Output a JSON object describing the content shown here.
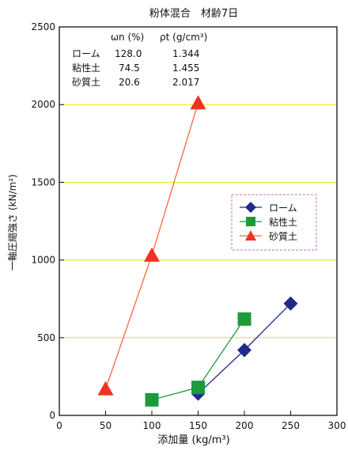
{
  "chart_data": {
    "type": "line",
    "title": "粉体混合　材齢7日",
    "xlabel": "添加量 (kg/m³)",
    "ylabel": "一軸圧縮強さ (kN/m²)",
    "xlim": [
      0,
      300
    ],
    "ylim": [
      0,
      2500
    ],
    "x_ticks": [
      "0",
      "50",
      "100",
      "150",
      "200",
      "250",
      "300"
    ],
    "y_ticks": [
      "0",
      "500",
      "1000",
      "1500",
      "2000",
      "2500"
    ],
    "grid": "horizontal",
    "gridline_color": "#e8e800",
    "legend_position": "right",
    "series": [
      {
        "name": "ローム",
        "marker": "diamond",
        "color": "#1f2a8a",
        "points": [
          [
            150,
            140
          ],
          [
            200,
            420
          ],
          [
            250,
            720
          ]
        ]
      },
      {
        "name": "粘性土",
        "marker": "square",
        "color": "#1e9a3c",
        "points": [
          [
            100,
            100
          ],
          [
            150,
            180
          ],
          [
            200,
            620
          ]
        ]
      },
      {
        "name": "砂質土",
        "marker": "triangle",
        "color": "#ee3322",
        "line_color": "#ff6644",
        "points": [
          [
            50,
            170
          ],
          [
            100,
            1030
          ],
          [
            150,
            2010
          ]
        ]
      }
    ],
    "properties_table": {
      "headers": [
        "",
        "ωn (%)",
        "ρt (g/cm³)"
      ],
      "rows": [
        [
          "ローム",
          "128.0",
          "1.344"
        ],
        [
          "粘性土",
          "74.5",
          "1.455"
        ],
        [
          "砂質土",
          "20.6",
          "2.017"
        ]
      ]
    }
  }
}
